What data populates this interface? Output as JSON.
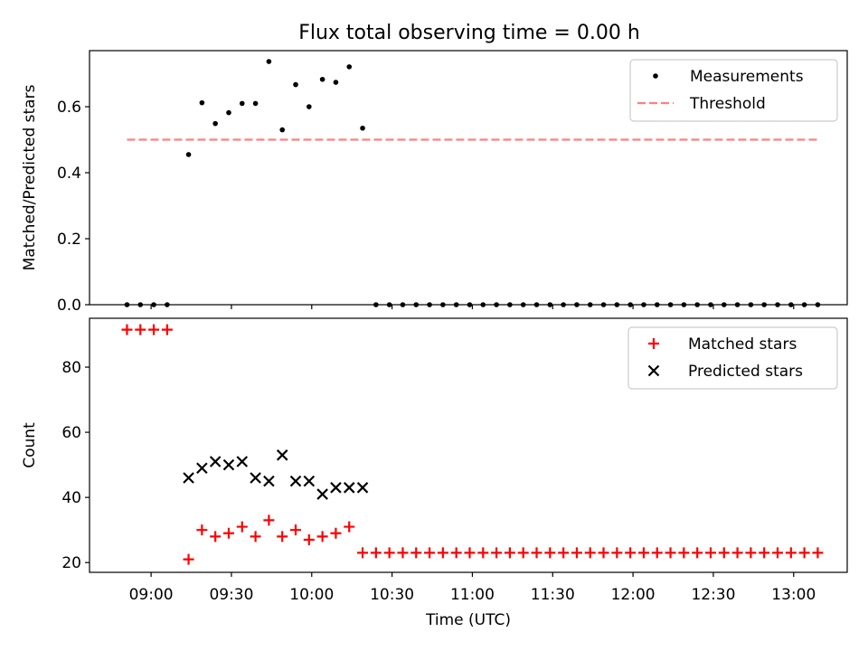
{
  "title": "Flux total observing time = 0.00 h",
  "chart_data": [
    {
      "type": "scatter",
      "ylabel": "Matched/Predicted stars",
      "xlabel": "",
      "xlim": [
        "08:37",
        "13:20"
      ],
      "ylim": [
        0,
        0.77
      ],
      "yticks": [
        "0.0",
        "0.2",
        "0.4",
        "0.6"
      ],
      "legend_position": "top-right",
      "series": [
        {
          "name": "Measurements",
          "marker": "dot",
          "color": "#000000",
          "points": [
            [
              "08:51",
              0
            ],
            [
              "08:56",
              0
            ],
            [
              "09:01",
              0
            ],
            [
              "09:06",
              0
            ],
            [
              "09:14",
              0.455
            ],
            [
              "09:19",
              0.612
            ],
            [
              "09:24",
              0.549
            ],
            [
              "09:29",
              0.582
            ],
            [
              "09:34",
              0.61
            ],
            [
              "09:39",
              0.61
            ],
            [
              "09:44",
              0.737
            ],
            [
              "09:49",
              0.53
            ],
            [
              "09:54",
              0.667
            ],
            [
              "09:59",
              0.6
            ],
            [
              "10:04",
              0.683
            ],
            [
              "10:09",
              0.674
            ],
            [
              "10:14",
              0.721
            ],
            [
              "10:19",
              0.535
            ],
            [
              "10:24",
              0
            ],
            [
              "10:29",
              0
            ],
            [
              "10:34",
              0
            ],
            [
              "10:39",
              0
            ],
            [
              "10:44",
              0
            ],
            [
              "10:49",
              0
            ],
            [
              "10:54",
              0
            ],
            [
              "10:59",
              0
            ],
            [
              "11:04",
              0
            ],
            [
              "11:09",
              0
            ],
            [
              "11:14",
              0
            ],
            [
              "11:19",
              0
            ],
            [
              "11:24",
              0
            ],
            [
              "11:29",
              0
            ],
            [
              "11:34",
              0
            ],
            [
              "11:39",
              0
            ],
            [
              "11:44",
              0
            ],
            [
              "11:49",
              0
            ],
            [
              "11:54",
              0
            ],
            [
              "11:59",
              0
            ],
            [
              "12:04",
              0
            ],
            [
              "12:09",
              0
            ],
            [
              "12:14",
              0
            ],
            [
              "12:19",
              0
            ],
            [
              "12:24",
              0
            ],
            [
              "12:29",
              0
            ],
            [
              "12:34",
              0
            ],
            [
              "12:39",
              0
            ],
            [
              "12:44",
              0
            ],
            [
              "12:49",
              0
            ],
            [
              "12:54",
              0
            ],
            [
              "12:59",
              0
            ],
            [
              "13:04",
              0
            ],
            [
              "13:09",
              0
            ]
          ]
        },
        {
          "name": "Threshold",
          "marker": "dashed-line",
          "color": "#ff7f7f",
          "points": [
            [
              "08:51",
              0.5
            ],
            [
              "13:09",
              0.5
            ]
          ]
        }
      ]
    },
    {
      "type": "scatter",
      "ylabel": "Count",
      "xlabel": "Time (UTC)",
      "xlim": [
        "08:37",
        "13:20"
      ],
      "ylim": [
        17,
        95
      ],
      "yticks": [
        "20",
        "40",
        "60",
        "80"
      ],
      "xticks": [
        "09:00",
        "09:30",
        "10:00",
        "10:30",
        "11:00",
        "11:30",
        "12:00",
        "12:30",
        "13:00"
      ],
      "legend_position": "top-right",
      "series": [
        {
          "name": "Matched stars",
          "marker": "plus",
          "color": "#ff0000",
          "points": [
            [
              "08:51",
              91.5
            ],
            [
              "08:56",
              91.5
            ],
            [
              "09:01",
              91.5
            ],
            [
              "09:06",
              91.5
            ],
            [
              "09:14",
              21
            ],
            [
              "09:19",
              30
            ],
            [
              "09:24",
              28
            ],
            [
              "09:29",
              29
            ],
            [
              "09:34",
              31
            ],
            [
              "09:39",
              28
            ],
            [
              "09:44",
              33
            ],
            [
              "09:49",
              28
            ],
            [
              "09:54",
              30
            ],
            [
              "09:59",
              27
            ],
            [
              "10:04",
              28
            ],
            [
              "10:09",
              29
            ],
            [
              "10:14",
              31
            ],
            [
              "10:19",
              23
            ],
            [
              "10:24",
              23
            ],
            [
              "10:29",
              23
            ],
            [
              "10:34",
              23
            ],
            [
              "10:39",
              23
            ],
            [
              "10:44",
              23
            ],
            [
              "10:49",
              23
            ],
            [
              "10:54",
              23
            ],
            [
              "10:59",
              23
            ],
            [
              "11:04",
              23
            ],
            [
              "11:09",
              23
            ],
            [
              "11:14",
              23
            ],
            [
              "11:19",
              23
            ],
            [
              "11:24",
              23
            ],
            [
              "11:29",
              23
            ],
            [
              "11:34",
              23
            ],
            [
              "11:39",
              23
            ],
            [
              "11:44",
              23
            ],
            [
              "11:49",
              23
            ],
            [
              "11:54",
              23
            ],
            [
              "11:59",
              23
            ],
            [
              "12:04",
              23
            ],
            [
              "12:09",
              23
            ],
            [
              "12:14",
              23
            ],
            [
              "12:19",
              23
            ],
            [
              "12:24",
              23
            ],
            [
              "12:29",
              23
            ],
            [
              "12:34",
              23
            ],
            [
              "12:39",
              23
            ],
            [
              "12:44",
              23
            ],
            [
              "12:49",
              23
            ],
            [
              "12:54",
              23
            ],
            [
              "12:59",
              23
            ],
            [
              "13:04",
              23
            ],
            [
              "13:09",
              23
            ]
          ]
        },
        {
          "name": "Predicted stars",
          "marker": "x",
          "color": "#000000",
          "points": [
            [
              "09:14",
              46
            ],
            [
              "09:19",
              49
            ],
            [
              "09:24",
              51
            ],
            [
              "09:29",
              50
            ],
            [
              "09:34",
              51
            ],
            [
              "09:39",
              46
            ],
            [
              "09:44",
              45
            ],
            [
              "09:49",
              53
            ],
            [
              "09:54",
              45
            ],
            [
              "09:59",
              45
            ],
            [
              "10:04",
              41
            ],
            [
              "10:09",
              43
            ],
            [
              "10:14",
              43
            ],
            [
              "10:19",
              43
            ]
          ]
        }
      ]
    }
  ]
}
